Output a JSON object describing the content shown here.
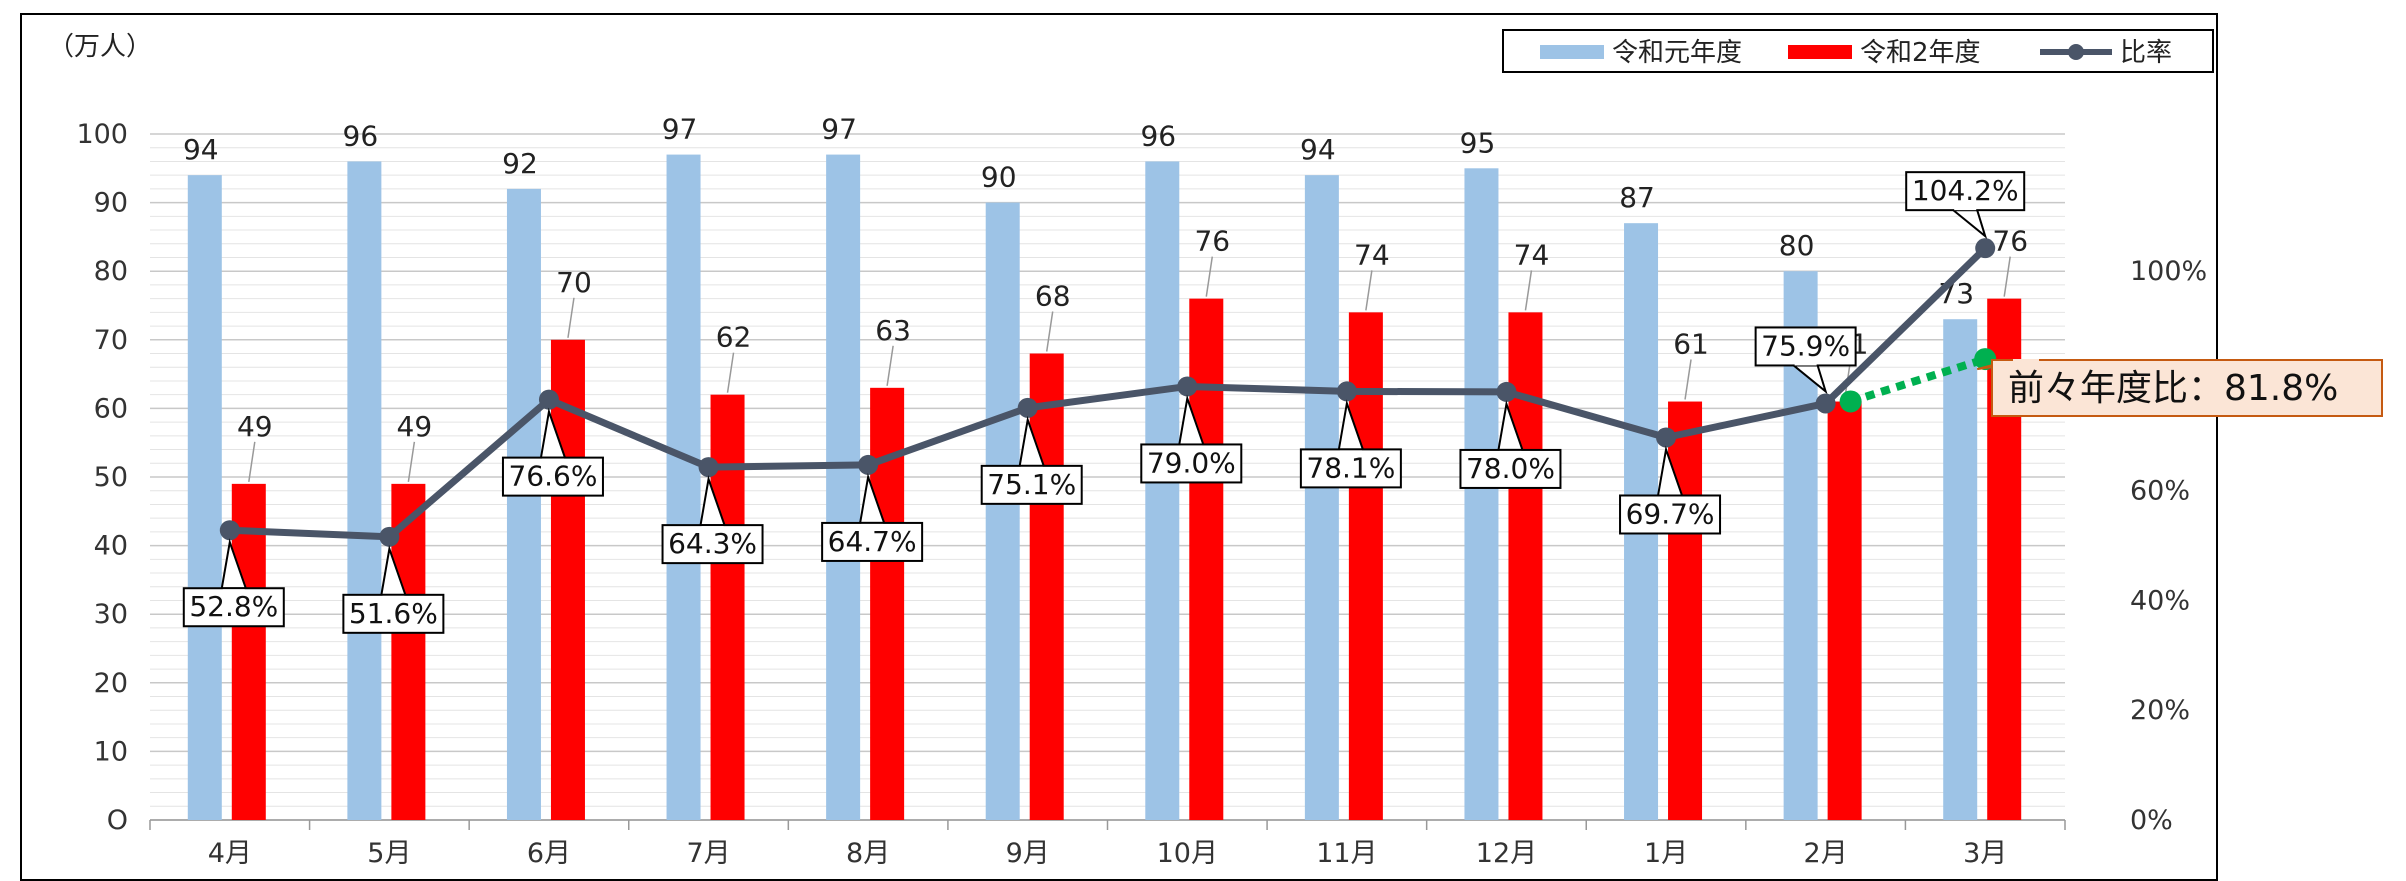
{
  "chart_data": {
    "type": "bar",
    "unit_label": "（万人）",
    "categories": [
      "4月",
      "5月",
      "6月",
      "7月",
      "8月",
      "9月",
      "10月",
      "11月",
      "12月",
      "1月",
      "2月",
      "3月"
    ],
    "series": [
      {
        "name": "令和元年度",
        "type": "bar",
        "color": "#9DC3E6",
        "axis": "left",
        "values": [
          94,
          96,
          92,
          97,
          97,
          90,
          96,
          94,
          95,
          87,
          80,
          73
        ]
      },
      {
        "name": "令和2年度",
        "type": "bar",
        "color": "#FF0000",
        "axis": "left",
        "values": [
          49,
          49,
          70,
          62,
          63,
          68,
          76,
          74,
          74,
          61,
          61,
          76
        ]
      },
      {
        "name": "比率",
        "type": "line",
        "color": "#4A5568",
        "axis": "right",
        "values": [
          52.8,
          51.6,
          76.6,
          64.3,
          64.7,
          75.1,
          79.0,
          78.1,
          78.0,
          69.7,
          75.9,
          104.2
        ],
        "labels": [
          "52.8%",
          "51.6%",
          "76.6%",
          "64.3%",
          "64.7%",
          "75.1%",
          "79.0%",
          "78.1%",
          "78.0%",
          "69.7%",
          "75.9%",
          "104.2%"
        ]
      }
    ],
    "y_left": {
      "min": 0,
      "max": 100,
      "step": 10
    },
    "y_right": {
      "min": 0,
      "max": 125,
      "ticks": [
        0,
        20,
        40,
        60,
        80,
        100
      ],
      "tick_labels": [
        "0%",
        "20%",
        "40%",
        "60%",
        "80%",
        "100%"
      ]
    },
    "green_link": {
      "from_category": "2月",
      "to_category": "3月",
      "from_value": 75.9,
      "to_value": 81.8,
      "color": "#00B050"
    },
    "callout": {
      "text": "前々年度比：81.8%",
      "fill": "#FBE5D6",
      "border": "#C55A11"
    },
    "grid": true,
    "legend": "top-right"
  }
}
